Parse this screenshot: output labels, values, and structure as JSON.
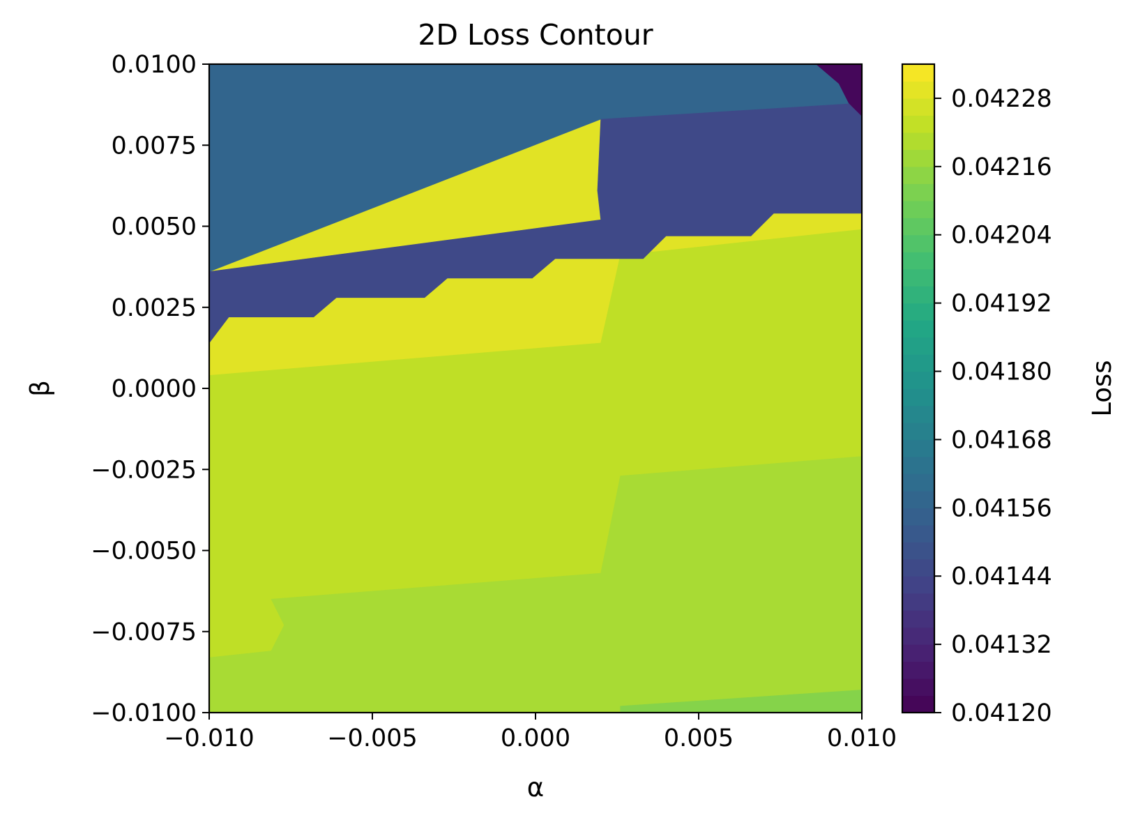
{
  "chart_data": {
    "type": "heatmap",
    "subtype": "filled-contour",
    "title": "2D Loss Contour",
    "xlabel": "α",
    "ylabel": "β",
    "xlim": [
      -0.01,
      0.01
    ],
    "ylim": [
      -0.01,
      0.01
    ],
    "x_ticks": [
      -0.01,
      -0.005,
      0.0,
      0.005,
      0.01
    ],
    "x_tick_labels": [
      "−0.010",
      "−0.005",
      "0.000",
      "0.005",
      "0.010"
    ],
    "y_ticks": [
      -0.01,
      -0.0075,
      -0.005,
      -0.0025,
      0.0,
      0.0025,
      0.005,
      0.0075,
      0.01
    ],
    "y_tick_labels": [
      "−0.0100",
      "−0.0075",
      "−0.0050",
      "−0.0025",
      "0.0000",
      "0.0025",
      "0.0050",
      "0.0075",
      "0.0100"
    ],
    "colormap": "viridis",
    "colorbar": {
      "label": "Loss",
      "range": [
        0.0412,
        0.04234
      ],
      "ticks": [
        0.0412,
        0.04132,
        0.04144,
        0.04156,
        0.04168,
        0.0418,
        0.04192,
        0.04204,
        0.04216,
        0.04228
      ],
      "tick_labels": [
        "0.04120",
        "0.04132",
        "0.04144",
        "0.04156",
        "0.04168",
        "0.04180",
        "0.04192",
        "0.04204",
        "0.04216",
        "0.04228"
      ],
      "levels": 38
    },
    "regions": [
      {
        "loss": 0.04229,
        "polygon": [
          [
            -0.01,
            -0.01
          ],
          [
            0.01,
            -0.01
          ],
          [
            0.01,
            0.0088
          ],
          [
            0.002,
            0.0083
          ],
          [
            -0.01,
            0.0036
          ]
        ]
      },
      {
        "loss": 0.04157,
        "polygon": [
          [
            -0.01,
            0.0036
          ],
          [
            0.002,
            0.0083
          ],
          [
            0.01,
            0.0088
          ],
          [
            0.01,
            0.01
          ],
          [
            -0.01,
            0.01
          ]
        ]
      },
      {
        "loss": 0.04229,
        "polygon": [
          [
            -0.01,
            -0.01
          ],
          [
            0.01,
            -0.01
          ],
          [
            0.01,
            0.0054
          ],
          [
            0.0073,
            0.0054
          ],
          [
            0.0066,
            0.0047
          ],
          [
            0.004,
            0.0047
          ],
          [
            0.0033,
            0.004
          ],
          [
            0.0006,
            0.004
          ],
          [
            -0.0001,
            0.0034
          ],
          [
            -0.0027,
            0.0034
          ],
          [
            -0.0034,
            0.0028
          ],
          [
            -0.0061,
            0.0028
          ],
          [
            -0.0068,
            0.0022
          ],
          [
            -0.0094,
            0.0022
          ],
          [
            -0.01,
            0.0014
          ]
        ]
      },
      {
        "loss": 0.04223,
        "polygon": [
          [
            -0.01,
            0.0004
          ],
          [
            0.002,
            0.0014
          ],
          [
            0.0026,
            0.0041
          ],
          [
            0.01,
            0.0049
          ],
          [
            0.01,
            -0.0021
          ],
          [
            0.0026,
            -0.0027
          ],
          [
            0.002,
            -0.0057
          ],
          [
            -0.0081,
            -0.0065
          ],
          [
            -0.0077,
            -0.0073
          ],
          [
            -0.0081,
            -0.0081
          ],
          [
            -0.01,
            -0.0083
          ]
        ]
      },
      {
        "loss": 0.04219,
        "polygon": [
          [
            -0.01,
            -0.0083
          ],
          [
            -0.0081,
            -0.0081
          ],
          [
            -0.0077,
            -0.0073
          ],
          [
            -0.0081,
            -0.0065
          ],
          [
            0.002,
            -0.0057
          ],
          [
            0.0026,
            -0.0027
          ],
          [
            0.01,
            -0.0021
          ],
          [
            0.01,
            -0.0093
          ],
          [
            0.0026,
            -0.0098
          ],
          [
            0.0026,
            -0.01
          ],
          [
            -0.01,
            -0.01
          ]
        ]
      },
      {
        "loss": 0.04213,
        "polygon": [
          [
            0.0026,
            -0.01
          ],
          [
            0.0026,
            -0.0098
          ],
          [
            0.01,
            -0.0093
          ],
          [
            0.01,
            -0.01
          ]
        ]
      },
      {
        "loss": 0.04145,
        "polygon": [
          [
            -0.01,
            0.0036
          ],
          [
            -0.01,
            0.0014
          ],
          [
            -0.0094,
            0.0022
          ],
          [
            -0.0068,
            0.0022
          ],
          [
            -0.0061,
            0.0028
          ],
          [
            -0.0034,
            0.0028
          ],
          [
            -0.0027,
            0.0034
          ],
          [
            -0.0001,
            0.0034
          ],
          [
            0.0006,
            0.004
          ],
          [
            0.0033,
            0.004
          ],
          [
            0.004,
            0.0047
          ],
          [
            0.0066,
            0.0047
          ],
          [
            0.0073,
            0.0054
          ],
          [
            0.01,
            0.0054
          ],
          [
            0.01,
            0.0088
          ],
          [
            0.002,
            0.0083
          ],
          [
            0.0019,
            0.0061
          ],
          [
            0.002,
            0.0052
          ]
        ]
      },
      {
        "loss": 0.04122,
        "polygon": [
          [
            0.0086,
            0.01
          ],
          [
            0.01,
            0.01
          ],
          [
            0.01,
            0.0084
          ],
          [
            0.0096,
            0.0088
          ],
          [
            0.0093,
            0.0094
          ]
        ]
      }
    ]
  }
}
